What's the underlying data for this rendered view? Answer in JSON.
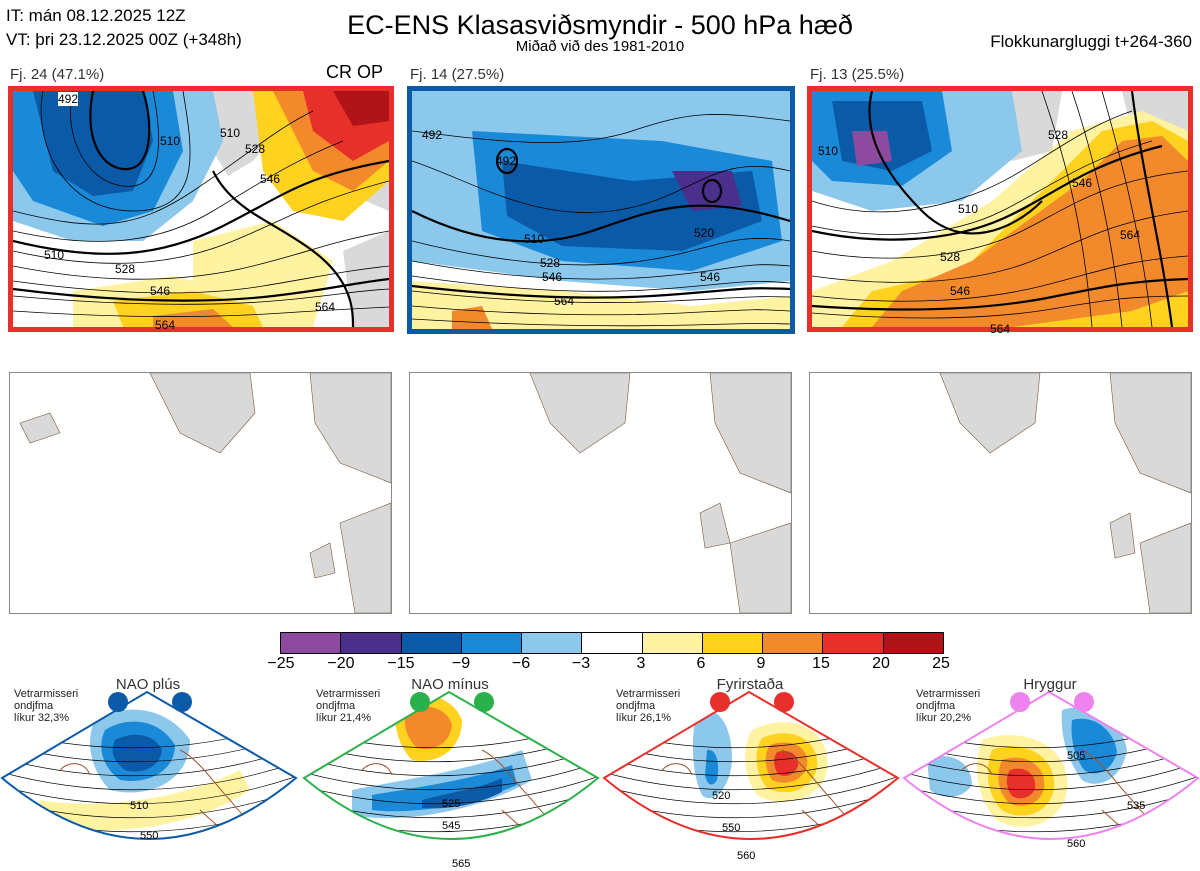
{
  "header": {
    "init_time": "IT: mán 08.12.2025 12Z",
    "valid_time": "VT: þri 23.12.2025 00Z  (+348h)",
    "title": "EC-ENS Klasasviðsmyndir - 500 hPa hæð",
    "subtitle": "Miðað við des 1981-2010",
    "window": "Flokkunargluggi t+264-360"
  },
  "clusters": [
    {
      "label": "Fj. 24 (47.1%)",
      "tag": "CR OP",
      "border_color": "#e8302a",
      "contour_labels": [
        "492",
        "510",
        "528",
        "546",
        "564",
        "510",
        "528",
        "546",
        "564",
        "510"
      ]
    },
    {
      "label": "Fj. 14 (27.5%)",
      "tag": "",
      "border_color": "#0b5aa8",
      "contour_labels": [
        "492",
        "492",
        "510",
        "528",
        "546",
        "564",
        "520",
        "546"
      ]
    },
    {
      "label": "Fj. 13 (25.5%)",
      "tag": "",
      "border_color": "#e8302a",
      "contour_labels": [
        "510",
        "528",
        "546",
        "564",
        "510",
        "528",
        "546",
        "564"
      ]
    }
  ],
  "colorbar": {
    "ticks": [
      "−25",
      "−20",
      "−15",
      "−9",
      "−6",
      "−3",
      "3",
      "6",
      "9",
      "15",
      "20",
      "25"
    ],
    "colors": [
      "#8e4a9e",
      "#4a2f8c",
      "#0b5aa8",
      "#1a8ad8",
      "#8cc8ec",
      "#ffffff",
      "#fff2a0",
      "#ffd21f",
      "#f28a2c",
      "#e8302a",
      "#b01418"
    ]
  },
  "regimes": [
    {
      "name": "NAO plús",
      "note": [
        "Vetrarmisseri",
        "ondjfma",
        "líkur 32,3%"
      ],
      "color": "#0b5aa8",
      "contour_labels": [
        "510",
        "550"
      ]
    },
    {
      "name": "NAO mínus",
      "note": [
        "Vetrarmisseri",
        "ondjfma",
        "líkur 21,4%"
      ],
      "color": "#2bb14b",
      "contour_labels": [
        "525",
        "545",
        "565"
      ]
    },
    {
      "name": "Fyrirstaða",
      "note": [
        "Vetrarmisseri",
        "ondjfma",
        "líkur 26,1%"
      ],
      "color": "#e8302a",
      "contour_labels": [
        "520",
        "550",
        "560"
      ]
    },
    {
      "name": "Hryggur",
      "note": [
        "Vetrarmisseri",
        "ondjfma",
        "líkur 20,2%"
      ],
      "color": "#ee82ee",
      "contour_labels": [
        "505",
        "535",
        "560"
      ]
    }
  ]
}
